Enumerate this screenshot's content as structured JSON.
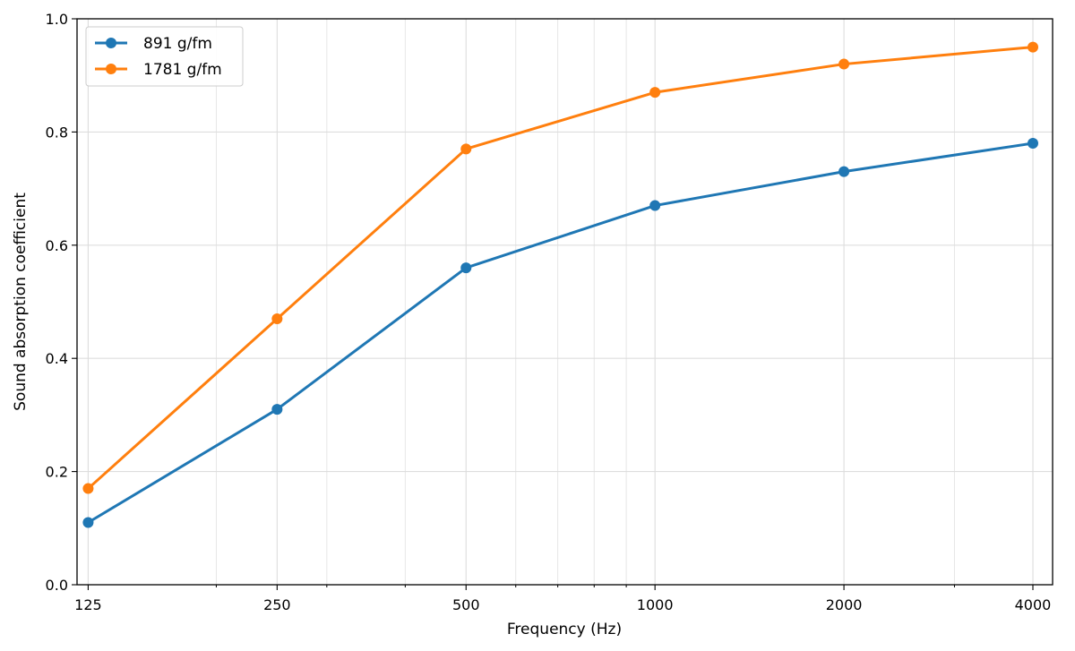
{
  "chart_data": {
    "type": "line",
    "title": "",
    "xlabel": "Frequency (Hz)",
    "ylabel": "Sound absorption coefficient",
    "x_scale": "log2",
    "x": [
      125,
      250,
      500,
      1000,
      2000,
      4000
    ],
    "x_tick_labels": [
      "125",
      "250",
      "500",
      "1000",
      "2000",
      "4000"
    ],
    "xlim": [
      120,
      4300
    ],
    "ylim": [
      0.0,
      1.0
    ],
    "y_ticks": [
      "0.0",
      "0.2",
      "0.4",
      "0.6",
      "0.8",
      "1.0"
    ],
    "grid": true,
    "legend_position": "upper-left",
    "series": [
      {
        "name": "891 g/fm",
        "color": "#1f77b4",
        "values": [
          0.11,
          0.31,
          0.56,
          0.67,
          0.73,
          0.78
        ]
      },
      {
        "name": "1781 g/fm",
        "color": "#ff7f0e",
        "values": [
          0.17,
          0.47,
          0.77,
          0.87,
          0.92,
          0.95
        ]
      }
    ]
  }
}
